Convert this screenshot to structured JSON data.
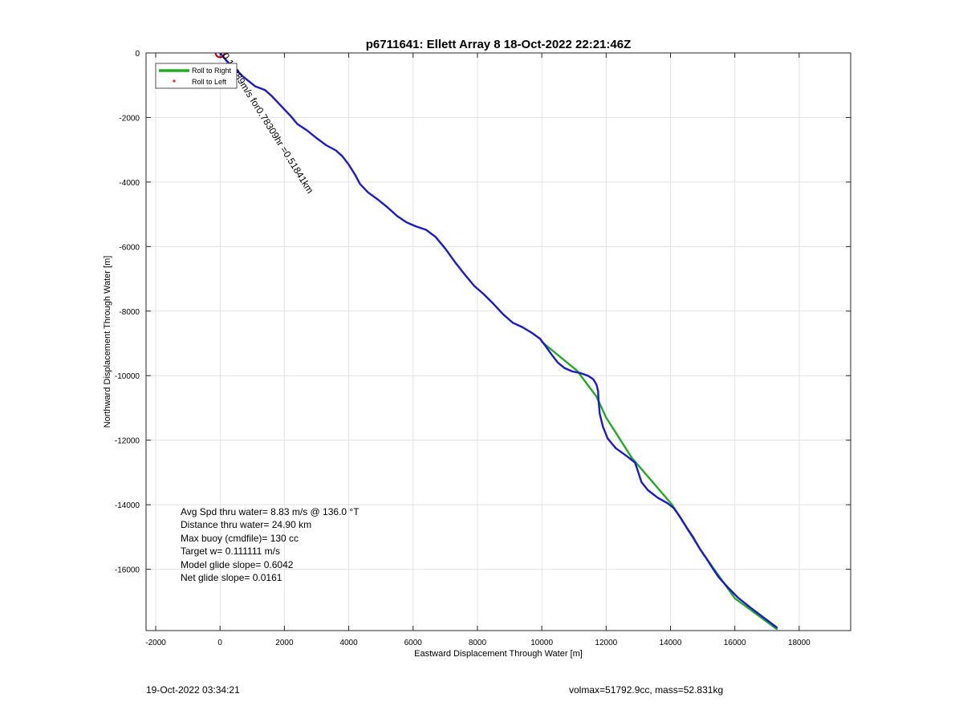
{
  "chart_data": {
    "type": "line",
    "title": "p6711641: Ellett Array 8 18-Oct-2022 22:21:46Z",
    "xlabel": "Eastward Displacement Through Water [m]",
    "ylabel": "Northward Displacement Through Water [m]",
    "xlim": [
      -2300,
      19600
    ],
    "ylim": [
      -17900,
      0
    ],
    "x_ticks": [
      -2000,
      0,
      2000,
      4000,
      6000,
      8000,
      10000,
      12000,
      14000,
      16000,
      18000
    ],
    "y_ticks": [
      0,
      -2000,
      -4000,
      -6000,
      -8000,
      -10000,
      -12000,
      -14000,
      -16000
    ],
    "x_tick_labels": [
      "-2000",
      "0",
      "2000",
      "4000",
      "6000",
      "8000",
      "10000",
      "12000",
      "14000",
      "16000",
      "18000"
    ],
    "y_tick_labels": [
      "0",
      "-2000",
      "-4000",
      "-6000",
      "-8000",
      "-10000",
      "-12000",
      "-14000",
      "-16000"
    ],
    "grid": true,
    "legend_position": "top-left",
    "legend": [
      {
        "label": "Roll to Right",
        "style": "line",
        "color": "#22aa22"
      },
      {
        "label": "Roll to Left",
        "style": "dot",
        "color": "#ee2222"
      }
    ],
    "series": [
      {
        "name": "Roll to Right",
        "color": "#22aa22",
        "x": [
          10000,
          11100,
          11700,
          12000,
          12800,
          14050,
          15000,
          16000,
          17300
        ],
        "y": [
          -8950,
          -9850,
          -10650,
          -11300,
          -12550,
          -14000,
          -15500,
          -16900,
          -17850
        ]
      },
      {
        "color": "#1a1acc",
        "x": [
          0,
          150,
          300,
          500,
          700,
          900,
          1100,
          1400,
          1600,
          1800,
          2000,
          2200,
          2400,
          2700,
          3000,
          3300,
          3600,
          3800,
          4000,
          4200,
          4350,
          4600,
          4900,
          5200,
          5500,
          5800,
          6100,
          6400,
          6700,
          7000,
          7300,
          7600,
          7900,
          8200,
          8500,
          8800,
          9100,
          9400,
          9700,
          9950,
          10100,
          10300,
          10500,
          10700,
          10950,
          11200,
          11450,
          11600,
          11700,
          11750,
          11760,
          11800,
          11900,
          12050,
          12300,
          12650,
          12900,
          13000,
          13100,
          13300,
          13600,
          13900,
          14100,
          14300,
          14500,
          14700,
          14900,
          15100,
          15300,
          15500,
          15800,
          16100,
          16500,
          16900,
          17300
        ],
        "y": [
          0,
          -180,
          -340,
          -520,
          -720,
          -880,
          -1040,
          -1150,
          -1330,
          -1540,
          -1750,
          -1960,
          -2200,
          -2400,
          -2640,
          -2860,
          -3020,
          -3200,
          -3460,
          -3780,
          -4060,
          -4320,
          -4540,
          -4780,
          -5050,
          -5250,
          -5380,
          -5480,
          -5700,
          -6060,
          -6480,
          -6860,
          -7220,
          -7480,
          -7780,
          -8100,
          -8360,
          -8500,
          -8680,
          -8860,
          -9060,
          -9340,
          -9600,
          -9760,
          -9870,
          -9920,
          -10010,
          -10110,
          -10280,
          -10480,
          -10720,
          -11180,
          -11580,
          -11950,
          -12250,
          -12500,
          -12700,
          -13000,
          -13300,
          -13550,
          -13780,
          -13950,
          -14100,
          -14380,
          -14700,
          -15000,
          -15350,
          -15640,
          -15950,
          -16250,
          -16580,
          -16880,
          -17200,
          -17500,
          -17800
        ]
      }
    ],
    "start_marker": {
      "x": 0,
      "y": 0,
      "color": "#cc0000"
    },
    "rotated_annotation": {
      "text": "0.18389m/s for0.78309hr =0.51841km",
      "x": 50,
      "y": -80,
      "angle_deg": 58
    },
    "annotations": [
      "Avg Spd thru water=  8.83 m/s @ 136.0 °T",
      "Distance thru water= 24.90 km",
      "Max buoy (cmdfile)= 130 cc",
      "Target w= 0.111111 m/s",
      "Model glide slope= 0.6042",
      "Net glide slope= 0.0161"
    ]
  },
  "footer": {
    "timestamp": "19-Oct-2022 03:34:21",
    "volmax_mass": "volmax=51792.9cc, mass=52.831kg"
  }
}
